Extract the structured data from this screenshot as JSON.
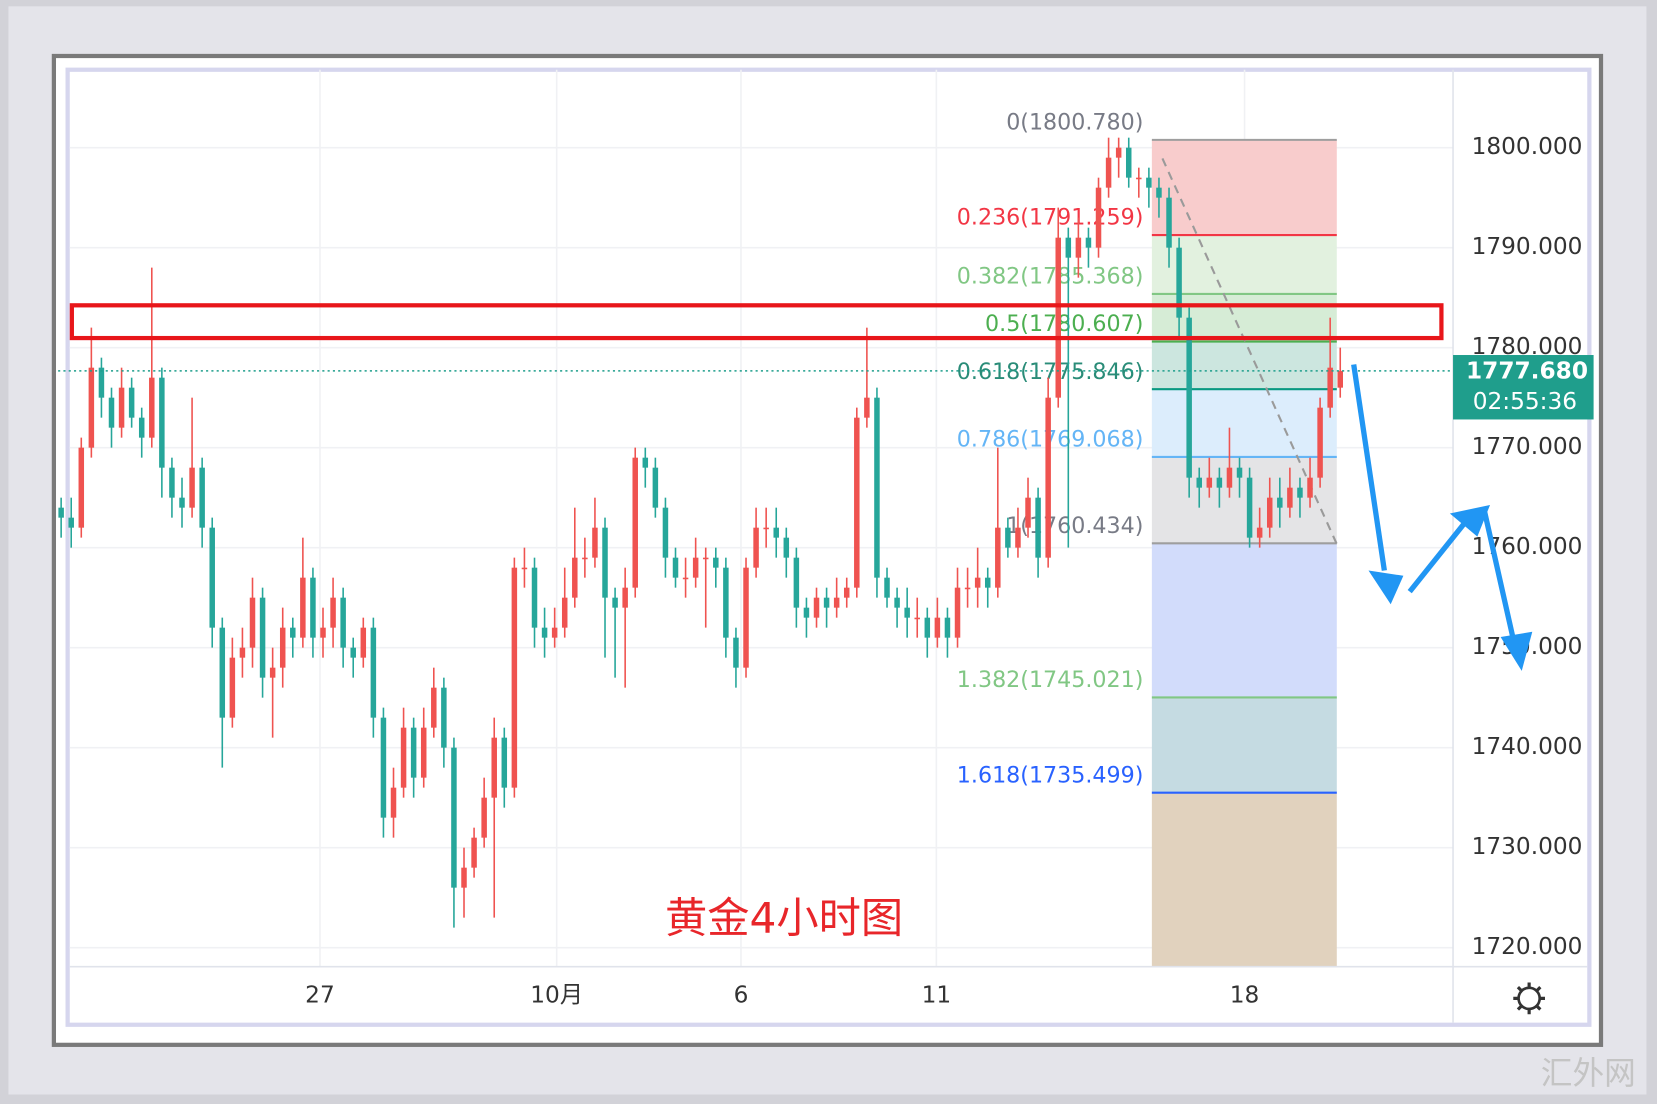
{
  "chart_data": {
    "type": "candlestick",
    "title": "黄金4小时图",
    "watermark": "汇外网",
    "up_color": "#ef5350",
    "down_color": "#26a69a",
    "ylim": [
      1718.1,
      1807.9
    ],
    "yticks": [
      {
        "value": 1720,
        "label": "1720.000"
      },
      {
        "value": 1730,
        "label": "1730.000"
      },
      {
        "value": 1740,
        "label": "1740.000"
      },
      {
        "value": 1750,
        "label": "1750.000"
      },
      {
        "value": 1760,
        "label": "1760.000"
      },
      {
        "value": 1770,
        "label": "1770.000"
      },
      {
        "value": 1780,
        "label": "1780.000"
      },
      {
        "value": 1790,
        "label": "1790.000"
      },
      {
        "value": 1800,
        "label": "1800.000"
      }
    ],
    "xlim": [
      -0.3,
      138.2
    ],
    "xticks": [
      {
        "value": 25.7,
        "label": "27"
      },
      {
        "value": 49.2,
        "label": "10月"
      },
      {
        "value": 67.5,
        "label": "6"
      },
      {
        "value": 86.9,
        "label": "11"
      },
      {
        "value": 117.5,
        "label": "18"
      }
    ],
    "grid": true,
    "open": [
      1764,
      1763,
      1762,
      1770,
      1778,
      1775,
      1772,
      1776,
      1773,
      1771,
      1777,
      1768,
      1765,
      1764,
      1768,
      1762,
      1752,
      1743,
      1749,
      1750,
      1755,
      1747,
      1748,
      1752,
      1751,
      1757,
      1751,
      1752,
      1755,
      1750,
      1749,
      1752,
      1743,
      1733,
      1736,
      1742,
      1737,
      1742,
      1746,
      1740,
      1726,
      1728,
      1731,
      1735,
      1741,
      1736,
      1758,
      1758,
      1752,
      1751,
      1752,
      1755,
      1759,
      1759,
      1762,
      1755,
      1754,
      1756,
      1769,
      1768,
      1764,
      1759,
      1757,
      1757,
      1759,
      1759,
      1758,
      1751,
      1748,
      1758,
      1762,
      1762,
      1761,
      1759,
      1754,
      1753,
      1755,
      1754,
      1755,
      1756,
      1773,
      1775,
      1757,
      1755,
      1754,
      1753,
      1753,
      1751,
      1753,
      1751,
      1756,
      1756,
      1757,
      1756,
      1762,
      1760,
      1762,
      1765,
      1759,
      1775,
      1791,
      1789,
      1791,
      1790,
      1796,
      1799,
      1800,
      1797,
      1797,
      1796,
      1795,
      1790,
      1783,
      1767,
      1766,
      1767,
      1766,
      1768,
      1767,
      1761,
      1762,
      1765,
      1764,
      1766,
      1765,
      1767,
      1774,
      1776
    ],
    "high": [
      1765,
      1765,
      1771,
      1782,
      1779,
      1776,
      1778,
      1777,
      1774,
      1788,
      1778,
      1769,
      1767,
      1775,
      1769,
      1763,
      1753,
      1751,
      1752,
      1757,
      1756,
      1750,
      1754,
      1753,
      1761,
      1758,
      1754,
      1757,
      1756,
      1751,
      1753,
      1753,
      1744,
      1738,
      1744,
      1743,
      1744,
      1748,
      1747,
      1741,
      1730,
      1732,
      1737,
      1743,
      1742,
      1759,
      1760,
      1759,
      1754,
      1754,
      1758,
      1764,
      1761,
      1765,
      1763,
      1756,
      1758,
      1770,
      1770,
      1769,
      1765,
      1760,
      1759,
      1761,
      1760,
      1760,
      1759,
      1752,
      1759,
      1764,
      1764,
      1764,
      1762,
      1760,
      1755,
      1756,
      1756,
      1757,
      1757,
      1774,
      1782,
      1776,
      1758,
      1756,
      1756,
      1755,
      1754,
      1755,
      1754,
      1758,
      1758,
      1760,
      1758,
      1770,
      1763,
      1764,
      1767,
      1766,
      1777,
      1794,
      1792,
      1793,
      1792,
      1797,
      1801,
      1801,
      1801,
      1798,
      1798,
      1797,
      1796,
      1791,
      1784,
      1768,
      1769,
      1768,
      1772,
      1769,
      1768,
      1764,
      1767,
      1767,
      1768,
      1767,
      1769,
      1775,
      1783,
      1780
    ],
    "low": [
      1761,
      1760,
      1761,
      1769,
      1773,
      1770,
      1771,
      1772,
      1769,
      1770,
      1765,
      1763,
      1762,
      1763,
      1760,
      1750,
      1738,
      1742,
      1747,
      1748,
      1745,
      1741,
      1746,
      1749,
      1750,
      1749,
      1749,
      1750,
      1748,
      1747,
      1748,
      1741,
      1731,
      1731,
      1735,
      1735,
      1736,
      1741,
      1738,
      1722,
      1723,
      1727,
      1730,
      1723,
      1734,
      1735,
      1756,
      1750,
      1749,
      1750,
      1751,
      1754,
      1757,
      1758,
      1749,
      1747,
      1746,
      1755,
      1766,
      1763,
      1757,
      1756,
      1755,
      1756,
      1752,
      1756,
      1749,
      1746,
      1747,
      1757,
      1760,
      1759,
      1757,
      1752,
      1751,
      1752,
      1752,
      1753,
      1754,
      1755,
      1772,
      1755,
      1754,
      1752,
      1751,
      1751,
      1749,
      1750,
      1749,
      1750,
      1754,
      1754,
      1754,
      1755,
      1759,
      1759,
      1761,
      1757,
      1758,
      1774,
      1760,
      1787,
      1788,
      1789,
      1795,
      1797,
      1796,
      1795,
      1794,
      1793,
      1788,
      1781,
      1765,
      1764,
      1765,
      1764,
      1765,
      1765,
      1760,
      1760,
      1761,
      1762,
      1763,
      1763,
      1764,
      1766,
      1773,
      1775
    ],
    "close": [
      1763,
      1762,
      1770,
      1778,
      1775,
      1772,
      1776,
      1773,
      1771,
      1777,
      1768,
      1765,
      1764,
      1768,
      1762,
      1752,
      1743,
      1749,
      1750,
      1755,
      1747,
      1748,
      1752,
      1751,
      1757,
      1751,
      1752,
      1755,
      1750,
      1749,
      1752,
      1743,
      1733,
      1736,
      1742,
      1737,
      1742,
      1746,
      1740,
      1726,
      1728,
      1731,
      1735,
      1741,
      1736,
      1758,
      1758,
      1752,
      1751,
      1752,
      1755,
      1759,
      1759,
      1762,
      1755,
      1754,
      1756,
      1769,
      1768,
      1764,
      1759,
      1757,
      1757,
      1759,
      1759,
      1758,
      1751,
      1748,
      1758,
      1762,
      1762,
      1761,
      1759,
      1754,
      1753,
      1755,
      1754,
      1755,
      1756,
      1773,
      1775,
      1757,
      1755,
      1754,
      1753,
      1753,
      1751,
      1753,
      1751,
      1756,
      1756,
      1757,
      1756,
      1762,
      1760,
      1762,
      1765,
      1759,
      1775,
      1791,
      1789,
      1791,
      1790,
      1796,
      1799,
      1800,
      1797,
      1797,
      1796,
      1795,
      1790,
      1783,
      1767,
      1766,
      1767,
      1766,
      1768,
      1767,
      1761,
      1762,
      1765,
      1764,
      1766,
      1765,
      1767,
      1774,
      1778,
      1777.68
    ],
    "last_price": {
      "value": 1777.68,
      "label": "1777.680",
      "countdown": "02:55:36",
      "color": "#1f9e8c"
    },
    "fib_levels": [
      {
        "label": "0(1800.780)",
        "value": 1800.78,
        "color": "#9e9e9e",
        "text_color": "#787b86",
        "zone_color": "#f8cccc"
      },
      {
        "label": "0.236(1791.259)",
        "value": 1791.259,
        "color": "#f23645",
        "text_color": "#f23645",
        "zone_color": "#e2f1df"
      },
      {
        "label": "0.382(1785.368)",
        "value": 1785.368,
        "color": "#81c784",
        "text_color": "#81c784",
        "zone_color": "#d6ecd6"
      },
      {
        "label": "0.5(1780.607)",
        "value": 1780.607,
        "color": "#4caf50",
        "text_color": "#4caf50",
        "zone_color": "#cce6df"
      },
      {
        "label": "0.618(1775.846)",
        "value": 1775.846,
        "color": "#089981",
        "text_color": "#2a8c78",
        "zone_color": "#dcedfc"
      },
      {
        "label": "0.786(1769.068)",
        "value": 1769.068,
        "color": "#64b5f6",
        "text_color": "#64b5f6",
        "zone_color": "#e4e4e6"
      },
      {
        "label": "1(1760.434)",
        "value": 1760.434,
        "color": "#9e9e9e",
        "text_color": "#787b86",
        "zone_color": "#d2dcfb"
      },
      {
        "label": "1.382(1745.021)",
        "value": 1745.021,
        "color": "#81c784",
        "text_color": "#81c784",
        "zone_color": "#c5dbe2"
      },
      {
        "label": "1.618(1735.499)",
        "value": 1735.499,
        "color": "#2962ff",
        "text_color": "#2962ff",
        "zone_color": "#e1d2be"
      }
    ]
  }
}
